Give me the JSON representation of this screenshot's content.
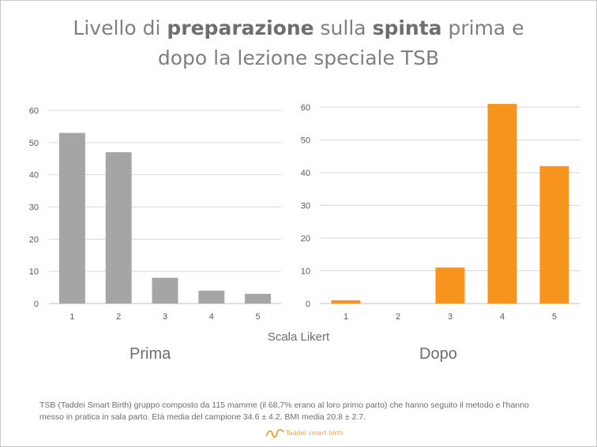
{
  "title": {
    "line1_parts": [
      "Livello di ",
      "preparazione",
      " sulla ",
      "spinta",
      " prima e"
    ],
    "line2": "dopo la lezione speciale TSB"
  },
  "colors": {
    "prima": "#a5a5a5",
    "dopo": "#f7941d",
    "grid": "#d9d9d9",
    "axis": "#bfbfbf"
  },
  "chart_data": [
    {
      "type": "bar",
      "title": "Prima",
      "xlabel": "Scala Likert",
      "categories": [
        "1",
        "2",
        "3",
        "4",
        "5"
      ],
      "values": [
        53,
        47,
        8,
        4,
        3
      ],
      "yticks": [
        "0",
        "10",
        "20",
        "30",
        "40",
        "50",
        "60"
      ],
      "ylim": [
        0,
        60
      ],
      "grid": true,
      "color": "#a5a5a5"
    },
    {
      "type": "bar",
      "title": "Dopo",
      "xlabel": "Scala Likert",
      "categories": [
        "1",
        "2",
        "3",
        "4",
        "5"
      ],
      "values": [
        1,
        0,
        11,
        61,
        42
      ],
      "yticks": [
        "0",
        "10",
        "20",
        "30",
        "40",
        "50",
        "60"
      ],
      "ylim": [
        0,
        60
      ],
      "grid": true,
      "color": "#f7941d"
    }
  ],
  "x_axis_title": "Scala Likert",
  "panel_labels": {
    "prima": "Prima",
    "dopo": "Dopo"
  },
  "note": {
    "line1": "TSB (Taddei Smart Birth) gruppo composto da 115 mamme (il 68,7% erano al loro primo parto) che hanno seguito il metodo e l'hanno",
    "line2": "messo in pratica in sala parto. Età media del campione 34.6 ± 4.2, BMI media 20.8 ± 2.7."
  },
  "logo": {
    "text": "Taddei smart birth",
    "icon": "wave-logo-icon"
  }
}
